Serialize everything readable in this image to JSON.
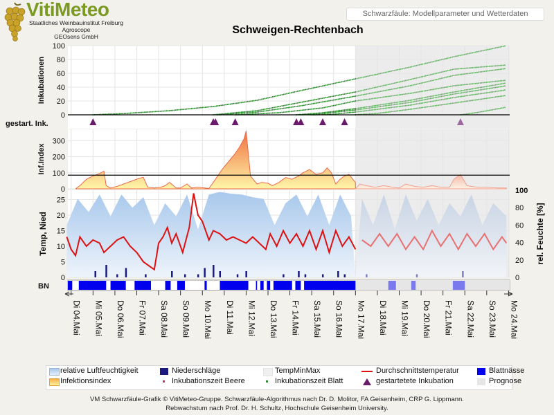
{
  "header": {
    "brand": "VitiMeteo",
    "institutions": [
      "Staatliches Weinbauinstitut Freiburg",
      "Agroscope",
      "GEOsens GmbH"
    ],
    "subtitle": "Schwarzfäule: Modellparameter und Wetterdaten"
  },
  "chart_data": {
    "type": "line",
    "title": "Schweigen-Rechtenbach",
    "x_tick_labels": [
      "Di 04.Mai",
      "Mi 05.Mai",
      "Do 06.Mai",
      "Fr 07.Mai",
      "Sa 08.Mai",
      "So 09.Mai",
      "Mo 10.Mai",
      "Di 11.Mai",
      "Mi 12.Mai",
      "Do 13.Mai",
      "Fr 14.Mai",
      "Sa 15.Mai",
      "So 16.Mai",
      "Mo 17.Mai",
      "Di 18.Mai",
      "Mi 19.Mai",
      "Do 20.Mai",
      "Fr 21.Mai",
      "Sa 22.Mai",
      "So 23.Mai",
      "Mo 24.Mai"
    ],
    "forecast_start_day": 13.5,
    "panels": {
      "incubations": {
        "ylabel": "Inkubationen",
        "ylim": [
          0,
          100
        ],
        "yticks": [
          0,
          20,
          40,
          60,
          80,
          100
        ],
        "series": [
          {
            "day": [
              1.5,
              3,
              5,
              7,
              9,
              11,
              13.5,
              16,
              18,
              20.4
            ],
            "values": [
              0,
              2,
              6,
              12,
              21,
              35,
              52,
              69,
              84,
              100
            ]
          },
          {
            "day": [
              7,
              9,
              11,
              13.5,
              16,
              18,
              20.4
            ],
            "values": [
              0,
              6,
              18,
              33,
              51,
              66,
              72
            ]
          },
          {
            "day": [
              7.2,
              9,
              11,
              13.5,
              16,
              18,
              20.4
            ],
            "values": [
              0,
              4,
              13,
              27,
              42,
              57,
              67
            ]
          },
          {
            "day": [
              8,
              10,
              12,
              13.5,
              16,
              18,
              20.4
            ],
            "values": [
              0,
              3,
              10,
              20,
              31,
              42,
              50
            ]
          },
          {
            "day": [
              10.8,
              12,
              13.5,
              16,
              18,
              20.4
            ],
            "values": [
              0,
              3,
              9,
              21,
              33,
              46
            ]
          },
          {
            "day": [
              11,
              12,
              13.5,
              16,
              18,
              20.4
            ],
            "values": [
              0,
              2,
              7,
              18,
              30,
              42
            ]
          },
          {
            "day": [
              11.5,
              12.5,
              13.5,
              16,
              18,
              20.4
            ],
            "values": [
              0,
              1,
              4,
              14,
              25,
              36
            ]
          },
          {
            "day": [
              13.5,
              14.5,
              16,
              18,
              20.4
            ],
            "values": [
              0,
              2,
              8,
              17,
              28
            ]
          },
          {
            "day": [
              18.3,
              19,
              20.4
            ],
            "values": [
              0,
              3,
              11
            ]
          }
        ]
      },
      "started_incubations": {
        "label": "gestart. Ink.",
        "days": [
          1.5,
          7.0,
          7.1,
          8.0,
          10.8,
          11.0,
          12.0,
          13.0,
          18.3
        ]
      },
      "infection_index": {
        "ylabel": "Inf.Index",
        "ylim": [
          0,
          370
        ],
        "yticks": [
          0,
          100,
          200,
          300
        ],
        "threshold": 85,
        "day": [
          0.7,
          0.9,
          1.2,
          1.5,
          1.8,
          2.0,
          2.1,
          2.3,
          2.6,
          2.9,
          3.3,
          3.6,
          3.8,
          4.0,
          4.3,
          4.6,
          4.8,
          5.0,
          5.3,
          5.5,
          5.8,
          6.0,
          6.3,
          6.6,
          6.8,
          7.1,
          7.4,
          7.7,
          8.0,
          8.2,
          8.4,
          8.5,
          8.7,
          9.0,
          9.2,
          9.5,
          9.7,
          10.0,
          10.3,
          10.6,
          10.9,
          11.1,
          11.4,
          11.7,
          12.0,
          12.2,
          12.4,
          12.6,
          12.8,
          13.0,
          13.2,
          13.5,
          13.7,
          14.0,
          14.4,
          14.8,
          15.2,
          15.5,
          15.8,
          16.2,
          16.6,
          17.0,
          17.4,
          17.8,
          18.0,
          18.3,
          18.6,
          18.8,
          19.1,
          19.5,
          20.0,
          20.4
        ],
        "values": [
          0,
          20,
          60,
          80,
          95,
          110,
          20,
          5,
          15,
          30,
          50,
          65,
          72,
          10,
          5,
          10,
          20,
          40,
          5,
          5,
          30,
          5,
          10,
          5,
          2,
          60,
          120,
          170,
          220,
          260,
          310,
          360,
          80,
          30,
          40,
          35,
          20,
          40,
          70,
          60,
          80,
          100,
          120,
          90,
          100,
          130,
          100,
          30,
          60,
          80,
          90,
          40,
          30,
          20,
          10,
          20,
          10,
          5,
          30,
          15,
          10,
          20,
          10,
          10,
          60,
          90,
          20,
          15,
          10,
          10,
          5,
          5
        ]
      },
      "weather": {
        "ylabel_left": "Temp, Nied",
        "ylabel_right": "rel. Feuchte [%]",
        "ylim_left": [
          0,
          28
        ],
        "yticks_left": [
          0,
          5,
          10,
          15,
          20,
          25
        ],
        "ylim_right": [
          0,
          100
        ],
        "yticks_right": [
          0,
          20,
          40,
          60,
          80,
          100
        ],
        "temperature_day": [
          0.3,
          0.5,
          0.7,
          0.9,
          1.2,
          1.5,
          1.8,
          2.0,
          2.3,
          2.6,
          2.9,
          3.2,
          3.5,
          3.8,
          4.0,
          4.3,
          4.5,
          4.7,
          4.9,
          5.1,
          5.3,
          5.6,
          5.9,
          6.1,
          6.3,
          6.5,
          6.8,
          7.0,
          7.3,
          7.6,
          7.9,
          8.2,
          8.5,
          8.8,
          9.1,
          9.4,
          9.6,
          9.9,
          10.2,
          10.5,
          10.8,
          11.1,
          11.4,
          11.7,
          12.0,
          12.3,
          12.6,
          12.9,
          13.2,
          13.5,
          13.8,
          14.2,
          14.6,
          15.0,
          15.4,
          15.8,
          16.2,
          16.6,
          17.0,
          17.4,
          17.8,
          18.2,
          18.6,
          19.0,
          19.4,
          19.8,
          20.2,
          20.4
        ],
        "temperature": [
          13,
          9,
          7,
          13,
          10,
          12,
          11,
          8,
          10,
          12,
          13,
          10,
          8,
          5,
          4,
          2.5,
          11,
          13,
          16,
          11,
          14,
          8,
          16,
          27,
          20,
          18,
          12,
          15,
          14,
          12,
          13,
          12,
          11,
          13,
          11,
          9,
          14,
          10,
          15,
          11,
          14,
          10,
          15,
          9,
          15,
          8,
          15,
          10,
          13,
          9,
          12,
          10,
          14,
          10,
          14,
          9,
          13,
          9,
          15,
          10,
          14,
          9,
          14,
          10,
          14,
          9,
          13,
          11
        ],
        "humidity_day": [
          0.3,
          0.8,
          1.3,
          1.8,
          2.3,
          2.8,
          3.3,
          3.8,
          4.3,
          4.8,
          5.3,
          5.8,
          6.3,
          6.8,
          7.3,
          7.8,
          8.3,
          8.8,
          9.3,
          9.8,
          10.3,
          10.8,
          11.3,
          11.8,
          12.3,
          12.8,
          13.3,
          13.8,
          14.3,
          14.8,
          15.3,
          15.8,
          16.3,
          16.8,
          17.3,
          17.8,
          18.3,
          18.8,
          19.3,
          19.8,
          20.4
        ],
        "humidity": [
          60,
          90,
          75,
          95,
          70,
          95,
          80,
          92,
          60,
          85,
          70,
          95,
          55,
          95,
          98,
          96,
          95,
          92,
          90,
          60,
          85,
          95,
          70,
          95,
          60,
          95,
          70,
          90,
          60,
          95,
          55,
          95,
          65,
          90,
          60,
          85,
          70,
          95,
          60,
          85,
          70
        ],
        "precipitation_day": [
          1.6,
          2.1,
          2.6,
          3.0,
          3.9,
          5.1,
          5.7,
          6.3,
          6.6,
          7.0,
          7.3,
          8.1,
          8.5,
          10.2,
          10.9,
          11.2,
          12.0,
          12.7,
          13.0,
          14.0,
          16.3,
          18.4
        ],
        "precipitation": [
          2,
          4,
          1,
          3,
          1,
          2,
          1,
          1,
          3,
          4,
          2,
          1,
          2,
          1,
          2,
          1,
          1,
          2,
          1,
          1,
          1,
          2
        ]
      },
      "leaf_wetness": {
        "label": "BN",
        "wet_intervals": [
          [
            0.35,
            0.55
          ],
          [
            0.85,
            2.1
          ],
          [
            2.3,
            3.0
          ],
          [
            3.4,
            4.15
          ],
          [
            4.8,
            5.05
          ],
          [
            5.35,
            5.7
          ],
          [
            6.6,
            6.7
          ],
          [
            7.3,
            8.6
          ],
          [
            8.95,
            9.0
          ],
          [
            9.15,
            9.3
          ],
          [
            9.45,
            9.6
          ],
          [
            9.75,
            10.6
          ],
          [
            10.75,
            11.0
          ],
          [
            11.15,
            13.5
          ],
          [
            15.0,
            15.35
          ],
          [
            16.05,
            16.25
          ],
          [
            17.95,
            18.5
          ]
        ]
      }
    },
    "legend": {
      "entries": [
        "relative Luftfeuchtigkeit",
        "Infektionsindex",
        "Niederschläge",
        "Inkubationszeit Beere",
        "TempMinMax",
        "Inkubationszeit Blatt",
        "Durchschnittstemperatur",
        "gestartetete Inkubation",
        "Blattnässe",
        "Prognose"
      ],
      "colors": {
        "humidity": "#a8c8ec",
        "infection": "#f6b04a",
        "precipitation": "#1a1a80",
        "temperature": "#dd1111",
        "leaf_wetness": "#0000ee",
        "incubation": "#2e8b2e",
        "marker": "#6a1a6a",
        "forecast": "#e6e6e6"
      }
    }
  },
  "footer": {
    "line1": "VM Schwarzfäule-Grafik © VitiMeteo-Gruppe. Schwarzfäule-Algorithmus nach Dr. D. Molitor, FA Geisenheim, CRP G. Lippmann.",
    "line2": "Rebwachstum nach Prof. Dr. H. Schultz, Hochschule Geisenheim University."
  }
}
